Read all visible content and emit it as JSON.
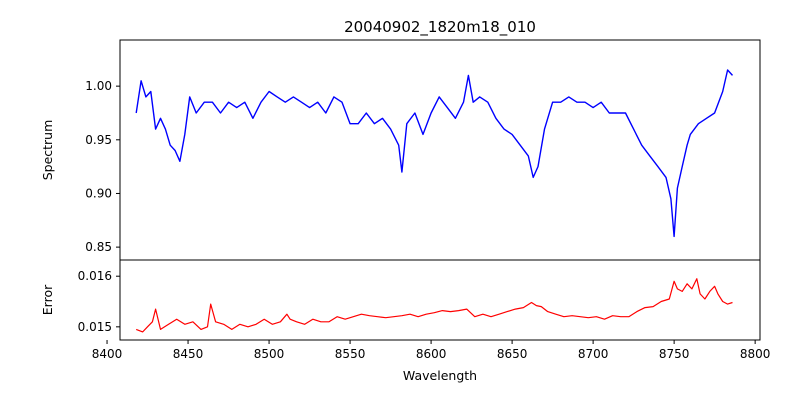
{
  "chart_data": {
    "type": "line",
    "title": "20040902_1820m18_010",
    "xlabel": "Wavelength",
    "xlim": [
      8408,
      8803
    ],
    "x_ticks": [
      8400,
      8450,
      8500,
      8550,
      8600,
      8650,
      8700,
      8750,
      8800
    ],
    "x_tick_labels": [
      "8400",
      "8450",
      "8500",
      "8550",
      "8600",
      "8650",
      "8700",
      "8750",
      "8800"
    ],
    "panels": [
      {
        "name": "spectrum",
        "ylabel": "Spectrum",
        "ylim": [
          0.838,
          1.043
        ],
        "y_ticks": [
          0.85,
          0.9,
          0.95,
          1.0
        ],
        "y_tick_labels": [
          "0.85",
          "0.90",
          "0.95",
          "1.00"
        ],
        "series": [
          {
            "color": "#0000ff",
            "x": [
              8418,
              8421,
              8424,
              8427,
              8430,
              8433,
              8436,
              8439,
              8442,
              8445,
              8448,
              8451,
              8455,
              8460,
              8465,
              8470,
              8475,
              8480,
              8485,
              8490,
              8495,
              8500,
              8505,
              8510,
              8515,
              8520,
              8525,
              8530,
              8535,
              8540,
              8545,
              8550,
              8555,
              8560,
              8565,
              8570,
              8575,
              8580,
              8582,
              8585,
              8590,
              8595,
              8600,
              8605,
              8610,
              8615,
              8620,
              8623,
              8626,
              8630,
              8635,
              8640,
              8645,
              8650,
              8655,
              8660,
              8663,
              8666,
              8670,
              8675,
              8680,
              8685,
              8690,
              8695,
              8700,
              8705,
              8710,
              8715,
              8720,
              8725,
              8730,
              8735,
              8740,
              8745,
              8748,
              8750,
              8752,
              8755,
              8758,
              8760,
              8765,
              8770,
              8775,
              8780,
              8783,
              8786
            ],
            "values": [
              0.975,
              1.005,
              0.99,
              0.995,
              0.96,
              0.97,
              0.96,
              0.945,
              0.94,
              0.93,
              0.955,
              0.99,
              0.975,
              0.985,
              0.985,
              0.975,
              0.985,
              0.98,
              0.985,
              0.97,
              0.985,
              0.995,
              0.99,
              0.985,
              0.99,
              0.985,
              0.98,
              0.985,
              0.975,
              0.99,
              0.985,
              0.965,
              0.965,
              0.975,
              0.965,
              0.97,
              0.96,
              0.945,
              0.92,
              0.965,
              0.975,
              0.955,
              0.975,
              0.99,
              0.98,
              0.97,
              0.985,
              1.01,
              0.985,
              0.99,
              0.985,
              0.97,
              0.96,
              0.955,
              0.945,
              0.935,
              0.915,
              0.925,
              0.96,
              0.985,
              0.985,
              0.99,
              0.985,
              0.985,
              0.98,
              0.985,
              0.975,
              0.975,
              0.975,
              0.96,
              0.945,
              0.935,
              0.925,
              0.915,
              0.895,
              0.86,
              0.905,
              0.925,
              0.945,
              0.955,
              0.965,
              0.97,
              0.975,
              0.995,
              1.015,
              1.01
            ]
          }
        ]
      },
      {
        "name": "error",
        "ylabel": "Error",
        "ylim": [
          0.01474,
          0.01632
        ],
        "y_ticks": [
          0.015,
          0.016
        ],
        "y_tick_labels": [
          "0.015",
          "0.016"
        ],
        "series": [
          {
            "color": "#ff0000",
            "x": [
              8418,
              8422,
              8425,
              8428,
              8430,
              8433,
              8438,
              8443,
              8448,
              8453,
              8458,
              8462,
              8464,
              8467,
              8472,
              8477,
              8482,
              8487,
              8492,
              8497,
              8502,
              8507,
              8511,
              8513,
              8517,
              8522,
              8527,
              8532,
              8537,
              8542,
              8547,
              8552,
              8557,
              8562,
              8567,
              8572,
              8577,
              8582,
              8587,
              8592,
              8597,
              8602,
              8607,
              8612,
              8617,
              8622,
              8627,
              8632,
              8637,
              8642,
              8647,
              8652,
              8657,
              8662,
              8665,
              8668,
              8672,
              8677,
              8682,
              8687,
              8692,
              8697,
              8702,
              8707,
              8712,
              8717,
              8722,
              8727,
              8732,
              8737,
              8742,
              8747,
              8750,
              8752,
              8755,
              8758,
              8761,
              8764,
              8766,
              8769,
              8772,
              8775,
              8777,
              8780,
              8783,
              8786
            ],
            "values": [
              0.01495,
              0.0149,
              0.015,
              0.0151,
              0.01535,
              0.01495,
              0.01505,
              0.01515,
              0.01505,
              0.0151,
              0.01495,
              0.015,
              0.01545,
              0.0151,
              0.01505,
              0.01495,
              0.01505,
              0.015,
              0.01505,
              0.01515,
              0.01505,
              0.0151,
              0.01525,
              0.01515,
              0.0151,
              0.01505,
              0.01515,
              0.0151,
              0.0151,
              0.0152,
              0.01515,
              0.0152,
              0.01525,
              0.01522,
              0.0152,
              0.01518,
              0.0152,
              0.01522,
              0.01525,
              0.0152,
              0.01525,
              0.01528,
              0.01532,
              0.0153,
              0.01532,
              0.01535,
              0.0152,
              0.01525,
              0.0152,
              0.01525,
              0.0153,
              0.01535,
              0.01538,
              0.01548,
              0.01542,
              0.0154,
              0.0153,
              0.01525,
              0.0152,
              0.01522,
              0.0152,
              0.01518,
              0.0152,
              0.01515,
              0.01522,
              0.0152,
              0.0152,
              0.0153,
              0.01538,
              0.0154,
              0.0155,
              0.01555,
              0.0159,
              0.01575,
              0.0157,
              0.01585,
              0.01575,
              0.01595,
              0.01565,
              0.01555,
              0.0157,
              0.0158,
              0.01565,
              0.0155,
              0.01545,
              0.01548
            ]
          }
        ]
      }
    ]
  }
}
